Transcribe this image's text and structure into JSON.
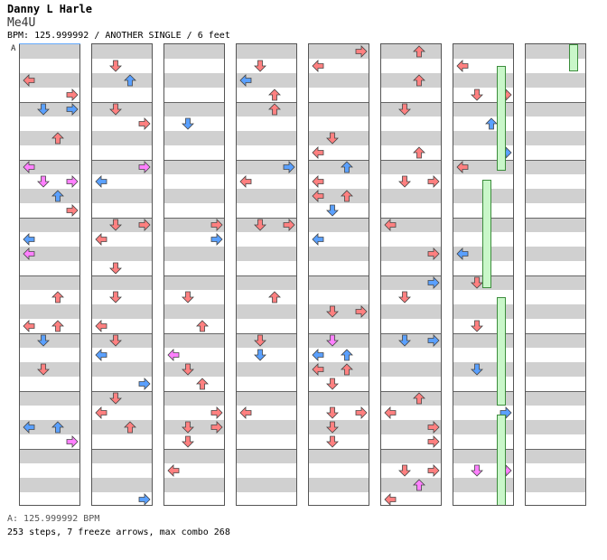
{
  "header": {
    "artist": "Danny L Harle",
    "title": "Me4U",
    "info": "BPM: 125.999992 / ANOTHER SINGLE / 6 feet"
  },
  "chart": {
    "bpm_marker": "A",
    "bpm_footer": "A: 125.999992 BPM",
    "stats": "253 steps, 7 freeze arrows, max combo 268",
    "columns": 8,
    "measures_per_column": 4,
    "colors": {
      "quarter": "#ff8080",
      "eighth": "#5aa0ff",
      "sixteenth": "#ff80ff",
      "freeze_fill": "#c9f7c9",
      "freeze_border": "#3c8c3c",
      "stripe": "#d0d0d0"
    },
    "direction_icons": [
      "left-arrow-icon",
      "down-arrow-icon",
      "up-arrow-icon",
      "right-arrow-icon"
    ]
  }
}
